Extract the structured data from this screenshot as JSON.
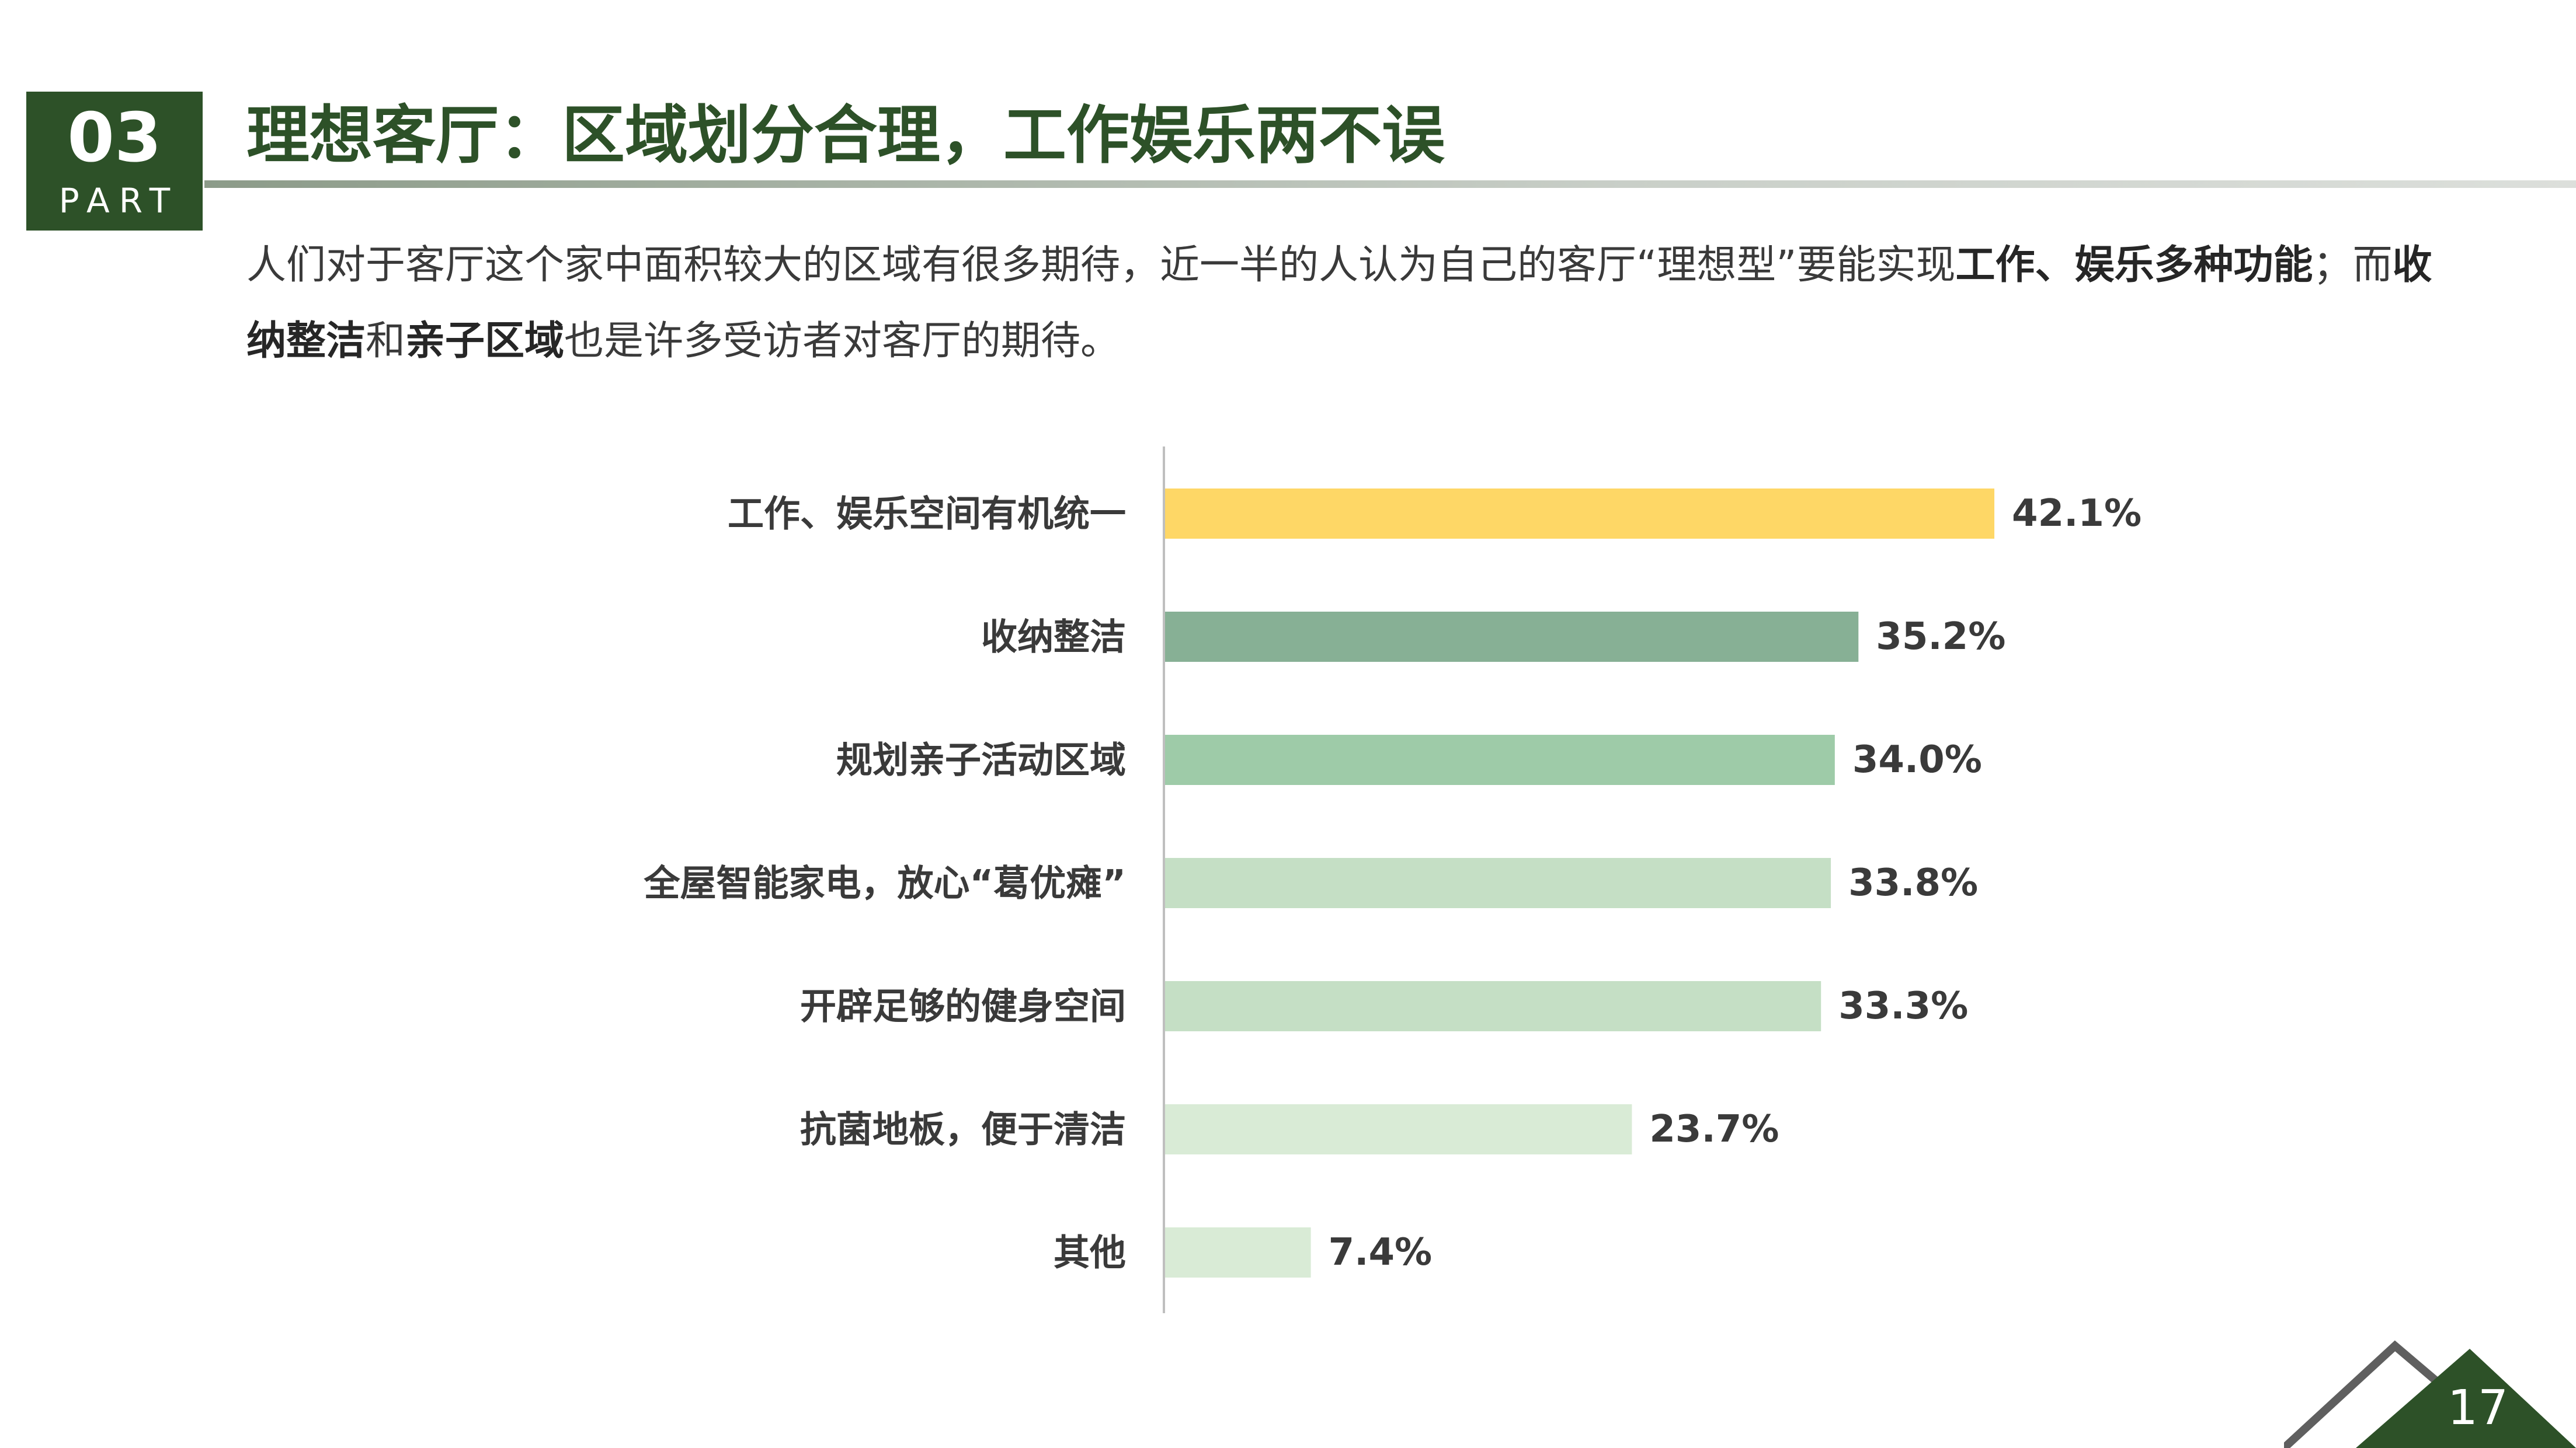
{
  "section": {
    "number": "03",
    "label": "PART"
  },
  "title": "理想客厅：区域划分合理，工作娱乐两不误",
  "description": {
    "segments": [
      {
        "text": "人们对于客厅这个家中面积较大的区域有很多期待，近一半的人认为自己的客厅“理想型”要能实现",
        "bold": false
      },
      {
        "text": "工作、娱乐多种功能",
        "bold": true
      },
      {
        "text": "；而",
        "bold": false
      },
      {
        "text": "收纳整洁",
        "bold": true
      },
      {
        "text": "和",
        "bold": false
      },
      {
        "text": "亲子区域",
        "bold": true
      },
      {
        "text": "也是许多受访者对客厅的期待。",
        "bold": false
      }
    ]
  },
  "chart_data": {
    "type": "bar",
    "orientation": "horizontal",
    "categories": [
      "工作、娱乐空间有机统一",
      "收纳整洁",
      "规划亲子活动区域",
      "全屋智能家电，放心“葛优瘫”",
      "开辟足够的健身空间",
      "抗菌地板，便于清洁",
      "其他"
    ],
    "values": [
      42.1,
      35.2,
      34.0,
      33.8,
      33.3,
      23.7,
      7.4
    ],
    "value_labels": [
      "42.1%",
      "35.2%",
      "34.0%",
      "33.8%",
      "33.3%",
      "23.7%",
      "7.4%"
    ],
    "colors": [
      "#fed766",
      "#87b095",
      "#9ecba8",
      "#c5dfc5",
      "#c5dfc5",
      "#d9ebd6",
      "#d9ebd6"
    ],
    "unit": "%",
    "grid": false,
    "legend": "none"
  },
  "page_number": "17",
  "colors": {
    "brand": "#2d5128",
    "corner_outline": "#5f5f5f",
    "text": "#3a3a3a"
  }
}
